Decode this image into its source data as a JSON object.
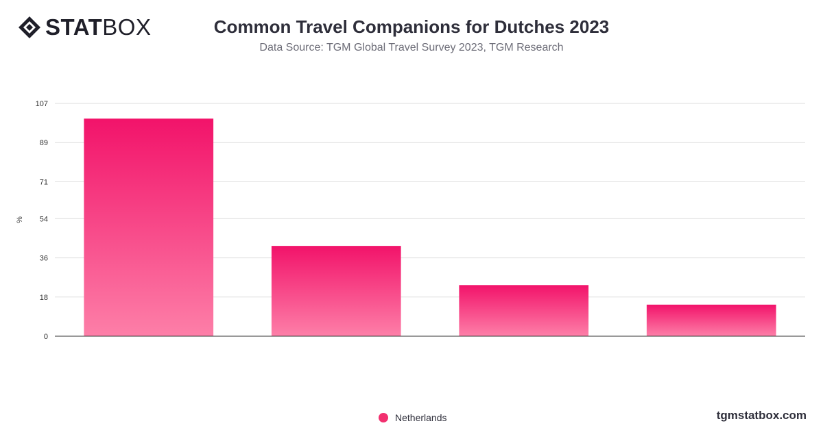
{
  "brand": {
    "logo_bold": "STAT",
    "logo_light": "BOX",
    "logo_icon": "diamond-logo-icon",
    "watermark": "tgmstatbox.com"
  },
  "header": {
    "title": "Common Travel Companions for Dutches 2023",
    "subtitle": "Data Source: TGM Global Travel Survey 2023, TGM Research"
  },
  "colors": {
    "bar_top": "#f2136a",
    "bar_bottom": "#fd7fa8",
    "grid": "#dedede",
    "axis": "#333333",
    "tick_text": "#333333"
  },
  "chart_data": {
    "type": "bar",
    "categories": [
      "",
      "",
      "",
      ""
    ],
    "series": [
      {
        "name": "Netherlands",
        "values": [
          100,
          41.5,
          23.5,
          14.5
        ]
      }
    ],
    "ylabel": "%",
    "ylim": [
      0,
      107
    ],
    "yticks": [
      "0",
      "18",
      "36",
      "54",
      "71",
      "89",
      "107"
    ],
    "ytick_values": [
      0,
      18,
      36,
      54,
      71,
      89,
      107
    ],
    "grid": true,
    "legend_position": "bottom-center"
  }
}
